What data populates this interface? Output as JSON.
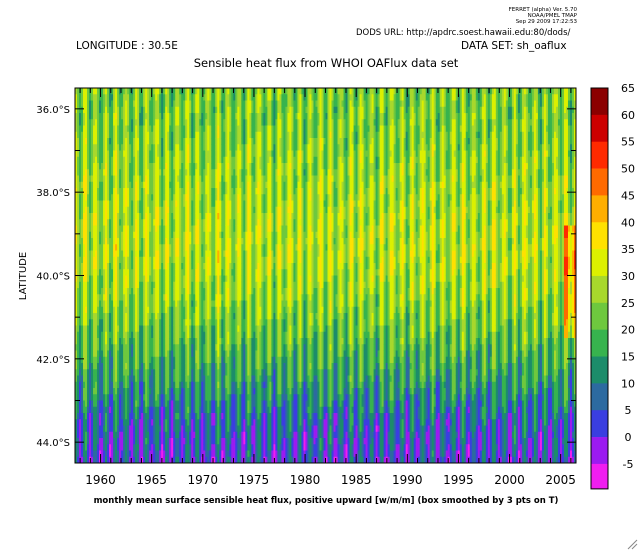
{
  "header": {
    "ferret_line1": "FERRET (alpha) Ver. 5.70",
    "ferret_line2": "NOAA/PMEL TMAP",
    "ferret_line3": "Sep 29 2009 17:22:53",
    "dods_url": "DODS URL: http://apdrc.soest.hawaii.edu:80/dods/",
    "longitude": "LONGITUDE : 30.5E",
    "dataset": "DATA SET: sh_oaflux"
  },
  "chart_data": {
    "type": "heatmap",
    "title": "Sensible heat flux from WHOI OAFlux data set",
    "xlabel": "monthly mean surface sensible heat flux, positive upward [w/m/m] (box smoothed by 3 pts on T)",
    "ylabel": "LATITUDE",
    "x_range": [
      1957.5,
      2006.5
    ],
    "y_range": [
      "35.5°S",
      "44.5°S"
    ],
    "x_ticks": [
      "1960",
      "1965",
      "1970",
      "1975",
      "1980",
      "1985",
      "1990",
      "1995",
      "2000",
      "2005"
    ],
    "y_ticks": [
      "36.0°S",
      "38.0°S",
      "40.0°S",
      "42.0°S",
      "44.0°S"
    ],
    "latitudes": [
      35.5,
      36.5,
      37.5,
      38.5,
      39.5,
      40.5,
      41.5,
      42.5,
      43.5,
      44.5
    ],
    "base_profile": [
      28,
      29,
      31,
      33,
      34,
      31,
      26,
      20,
      12,
      8
    ],
    "colorbar": {
      "levels": [
        "65",
        "60",
        "55",
        "50",
        "45",
        "40",
        "35",
        "30",
        "25",
        "20",
        "15",
        "10",
        "5",
        "0",
        "-5"
      ],
      "colors": [
        "#8b0000",
        "#cc0000",
        "#ff2a00",
        "#ff6a00",
        "#ffae00",
        "#ffe100",
        "#dcf000",
        "#a8d82c",
        "#6ec83e",
        "#37b34e",
        "#1c8c6a",
        "#2c6aa0",
        "#3a3ee0",
        "#9b1bf0",
        "#f01ef0"
      ]
    },
    "grid": false
  }
}
